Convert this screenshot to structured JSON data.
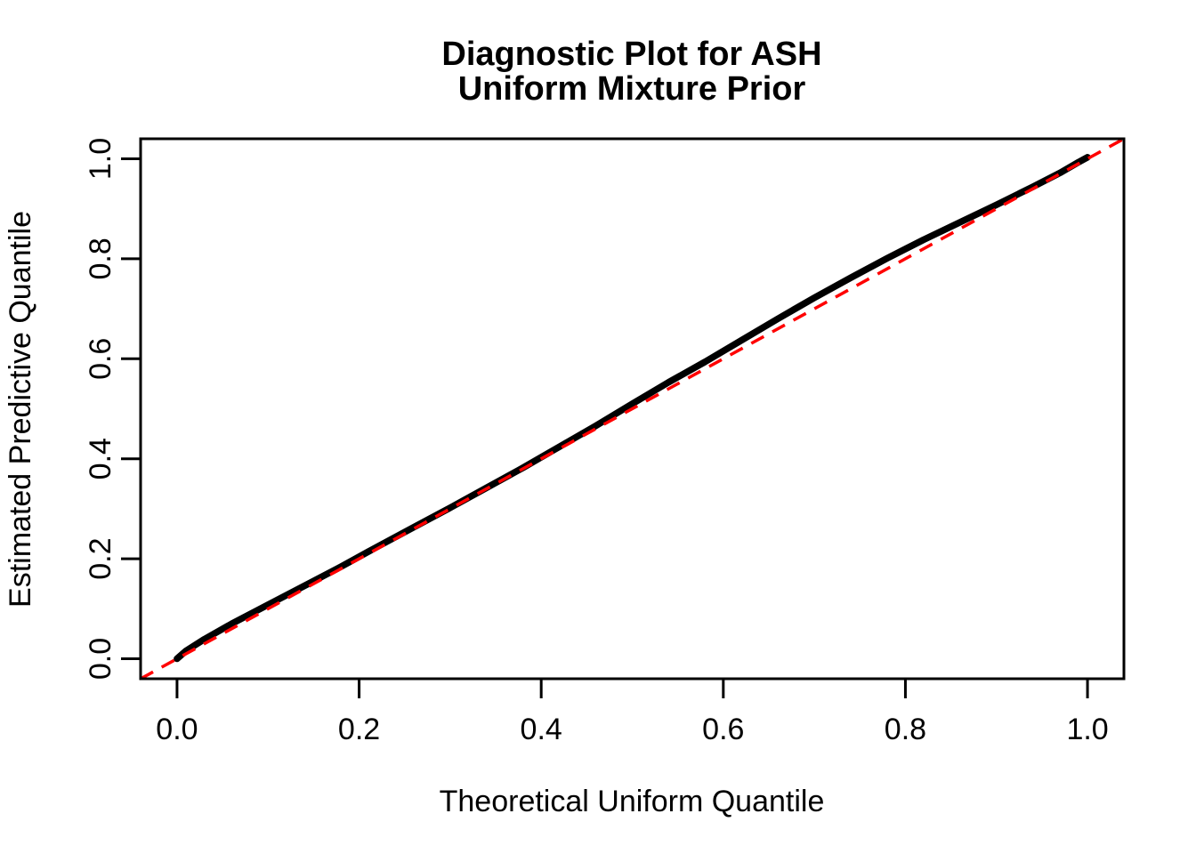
{
  "title": {
    "line1": "Diagnostic Plot for ASH",
    "line2": "Uniform Mixture Prior"
  },
  "axes": {
    "x": {
      "label": "Theoretical Uniform Quantile",
      "tick_labels": [
        "0.0",
        "0.2",
        "0.4",
        "0.6",
        "0.8",
        "1.0"
      ],
      "tick_values": [
        0.0,
        0.2,
        0.4,
        0.6,
        0.8,
        1.0
      ]
    },
    "y": {
      "label": "Estimated Predictive Quantile",
      "tick_labels": [
        "0.0",
        "0.2",
        "0.4",
        "0.6",
        "0.8",
        "1.0"
      ],
      "tick_values": [
        0.0,
        0.2,
        0.4,
        0.6,
        0.8,
        1.0
      ]
    }
  },
  "colors": {
    "curve": "#000000",
    "reference_line": "#FF0000",
    "axis": "#000000",
    "background": "#FFFFFF"
  },
  "chart_data": {
    "type": "line",
    "title": "Diagnostic Plot for ASH Uniform Mixture Prior",
    "xlabel": "Theoretical Uniform Quantile",
    "ylabel": "Estimated Predictive Quantile",
    "xlim": [
      -0.04,
      1.04
    ],
    "ylim": [
      -0.04,
      1.04
    ],
    "grid": false,
    "legend": null,
    "series": [
      {
        "name": "estimated-predictive-quantiles",
        "style": "thick-black-curve",
        "x": [
          0.0,
          0.01,
          0.03,
          0.06,
          0.1,
          0.14,
          0.18,
          0.21,
          0.22,
          0.26,
          0.3,
          0.34,
          0.375,
          0.38,
          0.42,
          0.46,
          0.5,
          0.54,
          0.58,
          0.62,
          0.66,
          0.7,
          0.74,
          0.78,
          0.82,
          0.86,
          0.9,
          0.94,
          0.97,
          0.99,
          1.0
        ],
        "y": [
          0.0,
          0.016,
          0.039,
          0.07,
          0.108,
          0.146,
          0.184,
          0.214,
          0.224,
          0.263,
          0.302,
          0.342,
          0.377,
          0.382,
          0.424,
          0.466,
          0.51,
          0.553,
          0.594,
          0.637,
          0.68,
          0.722,
          0.762,
          0.801,
          0.838,
          0.873,
          0.908,
          0.944,
          0.972,
          0.993,
          1.003
        ]
      },
      {
        "name": "identity-reference-line",
        "style": "red-dashed",
        "x": [
          -0.04,
          1.04
        ],
        "y": [
          -0.04,
          1.04
        ]
      }
    ]
  }
}
